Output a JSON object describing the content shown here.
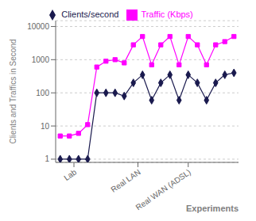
{
  "chart_data": {
    "type": "line",
    "xlabel": "Experiments",
    "ylabel": "Clients and Traffics in Second",
    "x": [
      0,
      1,
      2,
      3,
      4,
      5,
      6,
      7,
      8,
      9,
      10,
      11,
      12,
      13,
      14,
      15,
      16,
      17,
      18,
      19
    ],
    "series": [
      {
        "name": "Clients/second",
        "color": "#1a1a4e",
        "marker": "diamond",
        "values": [
          1,
          1,
          1,
          1,
          100,
          100,
          100,
          80,
          200,
          350,
          60,
          200,
          350,
          60,
          350,
          200,
          60,
          200,
          350,
          400
        ]
      },
      {
        "name": "Traffic (Kbps)",
        "color": "#ff00ff",
        "marker": "square",
        "values": [
          5,
          5,
          6,
          11,
          600,
          900,
          1000,
          800,
          2800,
          5000,
          700,
          2800,
          5000,
          700,
          5000,
          2800,
          700,
          2800,
          3500,
          5000
        ]
      }
    ],
    "log": "y",
    "ylim": [
      0.8,
      15000
    ],
    "yticks": [
      1,
      10,
      100,
      1000,
      10000
    ],
    "xlim": [
      -0.5,
      19.5
    ],
    "xticks": [
      {
        "value": 1.5,
        "label": "Lab"
      },
      {
        "value": 8.5,
        "label": "Real LAN"
      },
      {
        "value": 14,
        "label": "Real WAN (ADSL)"
      }
    ],
    "grid": "y",
    "legend": "top"
  }
}
